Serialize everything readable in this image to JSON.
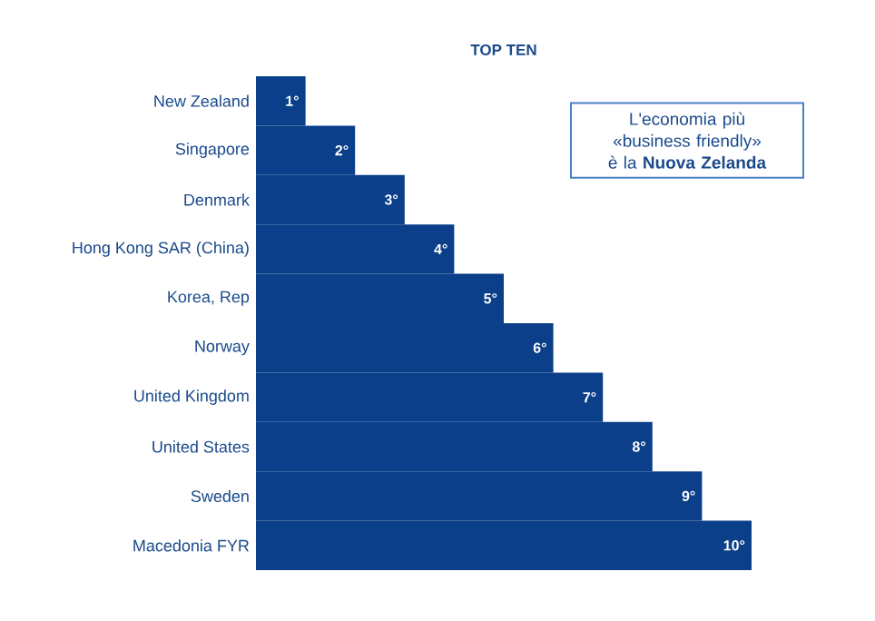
{
  "chart_data": {
    "type": "bar",
    "orientation": "horizontal",
    "title": "TOP TEN",
    "categories": [
      "New Zealand",
      "Singapore",
      "Denmark",
      "Hong Kong SAR (China)",
      "Korea, Rep",
      "Norway",
      "United Kingdom",
      "United States",
      "Sweden",
      "Macedonia FYR"
    ],
    "values": [
      1,
      2,
      3,
      4,
      5,
      6,
      7,
      8,
      9,
      10
    ],
    "value_labels": [
      "1°",
      "2°",
      "3°",
      "4°",
      "5°",
      "6°",
      "7°",
      "8°",
      "9°",
      "10°"
    ],
    "color": "#0b3f8a",
    "annotations": [
      "L'economia più «business friendly» è la **Nuova Zelanda**"
    ]
  }
}
